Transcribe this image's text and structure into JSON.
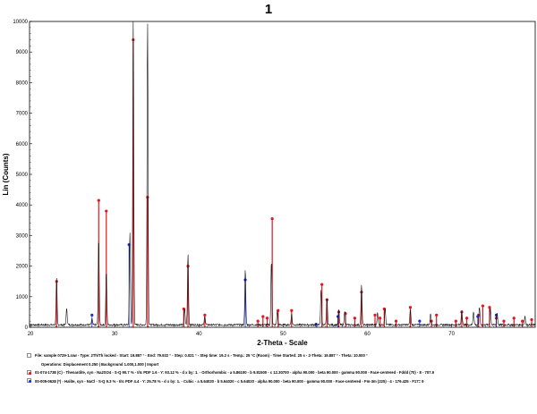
{
  "chart_data": {
    "type": "line",
    "title": "1",
    "xlabel": "2-Theta - Scale",
    "ylabel": "Lin (Counts)",
    "xlim": [
      19.887,
      79.922
    ],
    "ylim": [
      0,
      10000
    ],
    "x_ticks": [
      20,
      30,
      40,
      50,
      60,
      70
    ],
    "y_ticks": [
      0,
      1000,
      2000,
      3000,
      4000,
      5000,
      6000,
      7000,
      8000,
      9000,
      10000
    ],
    "grid": false,
    "legend": "bottom",
    "baseline_counts": 80,
    "pattern_peaks": [
      {
        "x": 23.1,
        "y": 1500
      },
      {
        "x": 24.3,
        "y": 550
      },
      {
        "x": 27.3,
        "y": 200
      },
      {
        "x": 28.1,
        "y": 2850
      },
      {
        "x": 29.0,
        "y": 1750
      },
      {
        "x": 31.8,
        "y": 3050
      },
      {
        "x": 32.2,
        "y": 10000
      },
      {
        "x": 33.9,
        "y": 10000
      },
      {
        "x": 38.3,
        "y": 550
      },
      {
        "x": 38.7,
        "y": 2350
      },
      {
        "x": 40.7,
        "y": 300
      },
      {
        "x": 45.5,
        "y": 1800
      },
      {
        "x": 48.6,
        "y": 2100
      },
      {
        "x": 49.3,
        "y": 450
      },
      {
        "x": 51.0,
        "y": 350
      },
      {
        "x": 54.5,
        "y": 1150
      },
      {
        "x": 55.2,
        "y": 900
      },
      {
        "x": 56.6,
        "y": 500
      },
      {
        "x": 57.3,
        "y": 450
      },
      {
        "x": 59.3,
        "y": 1300
      },
      {
        "x": 61.2,
        "y": 400
      },
      {
        "x": 62.1,
        "y": 550
      },
      {
        "x": 65.1,
        "y": 500
      },
      {
        "x": 67.5,
        "y": 400
      },
      {
        "x": 71.2,
        "y": 500
      },
      {
        "x": 72.6,
        "y": 450
      },
      {
        "x": 73.3,
        "y": 600
      },
      {
        "x": 74.6,
        "y": 550
      },
      {
        "x": 75.4,
        "y": 400
      },
      {
        "x": 78.7,
        "y": 300
      }
    ],
    "series": [
      {
        "name": "01-074-1738 (C) - Thenardite, syn - Na2SO4",
        "color": "#e8141e",
        "stick_width": "thick",
        "x": [
          23.1,
          28.1,
          29.0,
          32.2,
          33.9,
          38.2,
          38.7,
          40.7,
          47.0,
          47.6,
          48.1,
          48.7,
          49.4,
          51.0,
          54.6,
          55.2,
          56.6,
          57.4,
          58.5,
          59.3,
          60.9,
          61.5,
          62.0,
          63.4,
          65.1,
          67.6,
          68.2,
          70.5,
          71.2,
          71.8,
          73.2,
          73.7,
          74.5,
          75.3,
          76.2,
          77.4,
          78.4,
          79.5
        ],
        "y": [
          1500,
          4150,
          3800,
          9400,
          4250,
          600,
          2000,
          400,
          200,
          350,
          300,
          3550,
          550,
          550,
          1400,
          900,
          500,
          450,
          300,
          1150,
          400,
          300,
          600,
          200,
          650,
          200,
          400,
          200,
          500,
          300,
          400,
          700,
          650,
          300,
          200,
          300,
          200,
          250
        ]
      },
      {
        "name": "00-005-0628 (*) - Halite, syn - NaCl",
        "color": "#1a2ee8",
        "stick_width": "thin",
        "x": [
          27.3,
          31.7,
          45.5,
          53.9,
          56.5,
          66.2,
          73.1,
          75.3
        ],
        "y": [
          400,
          2700,
          1550,
          100,
          350,
          200,
          350,
          400
        ]
      }
    ]
  },
  "legend_rows": [
    {
      "marker": "file",
      "text": "File: sample 0729-1.raw - Type: 2Th/Th locked - Start: 19.887 ° - End: 79.922 ° - Step: 0.021 ° - Step time: 19.2 s - Temp.: 25 °C (Room) - Time Started: 25 s - 2-Theta: 19.887 ° - Theta: 10.000 °"
    },
    {
      "marker": "ops",
      "text": "Operations: Displacement 0.250 | Background 1.000,1.000 | Import"
    },
    {
      "marker": "red",
      "text": "01-074-1738 (C) - Thenardite, syn - Na2SO4 - S-Q 90.7 % - I/Ic PDF 1.6 - Y: 93.12 % - d x by: 1. - Orthorhombic - a 5.86100 - b 9.81500 - c 12.30700 - alpha 90.000 - beta 90.000 - gamma 90.000 - Face-centered - Fddd (70) - 8 - 707.9"
    },
    {
      "marker": "blue",
      "text": "00-005-0628 (*) - Halite, syn - NaCl - S-Q 9.3 % - I/Ic PDF 4.4 - Y: 25.78 % - d x by: 1. - Cubic - a 5.64020 - b 5.64020 - c 5.64020 - alpha 90.000 - beta 90.000 - gamma 90.000 - Face-centered - Fm-3m (225) - 4 - 179.425 - F17= 9"
    }
  ],
  "colors": {
    "pattern": "#111111",
    "axes": "#000000"
  }
}
